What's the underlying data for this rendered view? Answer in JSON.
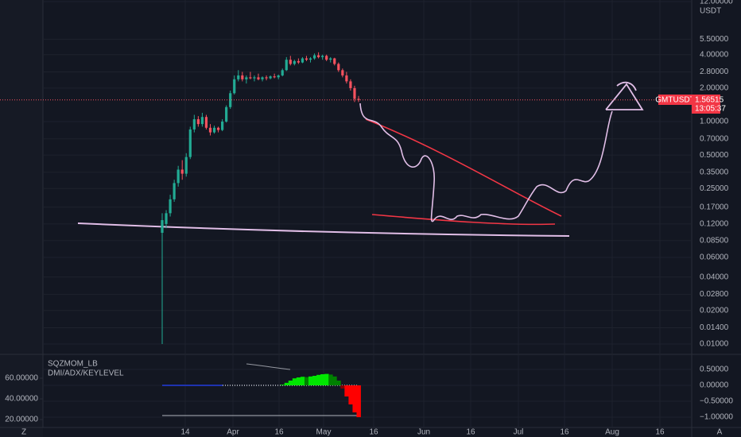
{
  "chart_data": {
    "type": "candlestick",
    "symbol": "GMTUSDT",
    "currency": "USDT",
    "last_price": 1.56515,
    "countdown": "13:05:37",
    "log_scale": true,
    "up_color": "#22ab94",
    "down_color": "#f7525f",
    "ylim": [
      0.0082,
      12.4
    ],
    "yticks": [
      {
        "value": 12,
        "label": "12.00000"
      },
      {
        "value": 5.5,
        "label": "5.50000"
      },
      {
        "value": 4,
        "label": "4.00000"
      },
      {
        "value": 2.8,
        "label": "2.80000"
      },
      {
        "value": 2,
        "label": "2.00000"
      },
      {
        "value": 1,
        "label": "1.00000"
      },
      {
        "value": 0.7,
        "label": "0.70000"
      },
      {
        "value": 0.5,
        "label": "0.50000"
      },
      {
        "value": 0.35,
        "label": "0.35000"
      },
      {
        "value": 0.25,
        "label": "0.25000"
      },
      {
        "value": 0.17,
        "label": "0.17000"
      },
      {
        "value": 0.12,
        "label": "0.12000"
      },
      {
        "value": 0.085,
        "label": "0.08500"
      },
      {
        "value": 0.06,
        "label": "0.06000"
      },
      {
        "value": 0.04,
        "label": "0.04000"
      },
      {
        "value": 0.028,
        "label": "0.02800"
      },
      {
        "value": 0.02,
        "label": "0.02000"
      },
      {
        "value": 0.014,
        "label": "0.01400"
      },
      {
        "value": 0.01,
        "label": "0.01000"
      }
    ],
    "x_labels": [
      "14",
      "Apr",
      "16",
      "May",
      "16",
      "Jun",
      "16",
      "Jul",
      "16",
      "Aug",
      "16"
    ],
    "corner_labels": [
      "Z",
      "A"
    ],
    "candles": [
      [
        0.1,
        0.15,
        0.01,
        0.13
      ],
      [
        0.12,
        0.16,
        0.11,
        0.15
      ],
      [
        0.15,
        0.22,
        0.14,
        0.2
      ],
      [
        0.2,
        0.3,
        0.19,
        0.28
      ],
      [
        0.28,
        0.4,
        0.26,
        0.37
      ],
      [
        0.37,
        0.45,
        0.3,
        0.34
      ],
      [
        0.34,
        0.52,
        0.32,
        0.48
      ],
      [
        0.48,
        0.9,
        0.46,
        0.85
      ],
      [
        0.85,
        1.15,
        0.8,
        1.05
      ],
      [
        1.05,
        1.12,
        0.9,
        0.95
      ],
      [
        0.95,
        1.2,
        0.9,
        1.1
      ],
      [
        1.1,
        1.15,
        0.85,
        0.88
      ],
      [
        0.88,
        0.95,
        0.75,
        0.8
      ],
      [
        0.8,
        0.92,
        0.78,
        0.88
      ],
      [
        0.88,
        0.9,
        0.8,
        0.84
      ],
      [
        0.84,
        1.05,
        0.82,
        1.0
      ],
      [
        1.0,
        1.4,
        0.98,
        1.35
      ],
      [
        1.35,
        1.9,
        1.3,
        1.8
      ],
      [
        1.8,
        2.6,
        1.75,
        2.4
      ],
      [
        2.4,
        2.9,
        2.3,
        2.6
      ],
      [
        2.6,
        2.8,
        2.3,
        2.4
      ],
      [
        2.4,
        2.6,
        2.2,
        2.5
      ],
      [
        2.5,
        2.8,
        2.4,
        2.45
      ],
      [
        2.45,
        2.6,
        2.3,
        2.5
      ],
      [
        2.5,
        2.7,
        2.35,
        2.4
      ],
      [
        2.4,
        2.55,
        2.3,
        2.5
      ],
      [
        2.5,
        2.6,
        2.35,
        2.45
      ],
      [
        2.45,
        2.6,
        2.4,
        2.55
      ],
      [
        2.55,
        2.7,
        2.45,
        2.5
      ],
      [
        2.5,
        2.65,
        2.4,
        2.6
      ],
      [
        2.6,
        3.0,
        2.55,
        2.9
      ],
      [
        2.9,
        3.8,
        2.85,
        3.6
      ],
      [
        3.6,
        3.9,
        3.2,
        3.3
      ],
      [
        3.3,
        3.6,
        3.2,
        3.5
      ],
      [
        3.5,
        3.7,
        3.3,
        3.4
      ],
      [
        3.4,
        3.8,
        3.35,
        3.7
      ],
      [
        3.7,
        3.9,
        3.5,
        3.6
      ],
      [
        3.6,
        3.8,
        3.4,
        3.7
      ],
      [
        3.7,
        4.1,
        3.6,
        3.95
      ],
      [
        3.95,
        4.2,
        3.7,
        3.8
      ],
      [
        3.8,
        4.0,
        3.6,
        3.9
      ],
      [
        3.9,
        4.0,
        3.5,
        3.6
      ],
      [
        3.6,
        3.8,
        3.4,
        3.7
      ],
      [
        3.7,
        3.75,
        3.2,
        3.3
      ],
      [
        3.3,
        3.4,
        2.8,
        2.9
      ],
      [
        2.9,
        3.0,
        2.5,
        2.6
      ],
      [
        2.6,
        2.8,
        2.2,
        2.3
      ],
      [
        2.3,
        2.4,
        1.9,
        2.0
      ],
      [
        2.0,
        2.1,
        1.5,
        1.6
      ],
      [
        1.6,
        1.7,
        1.5,
        1.56515
      ]
    ],
    "indicator": {
      "titles": [
        "SQZMOM_LB",
        "DMI/ADX/KEYLEVEL"
      ],
      "ylim": [
        -1.3,
        0.95
      ],
      "yticks": [
        {
          "value": 0.5,
          "label": "0.50000"
        },
        {
          "value": 0,
          "label": "0.00000"
        },
        {
          "value": -0.5,
          "label": "−0.50000"
        },
        {
          "value": -1,
          "label": "−1.00000"
        }
      ],
      "left_ylim": [
        13.1,
        82.3
      ],
      "left_yticks": [
        {
          "value": 60,
          "label": "60.00000"
        },
        {
          "value": 40,
          "label": "40.00000"
        },
        {
          "value": 20,
          "label": "20.00000"
        }
      ],
      "positive_colors": [
        "#00e600",
        "#008000"
      ],
      "negative_colors": [
        "#ff0000",
        "#800000"
      ],
      "momentum": [
        null,
        null,
        null,
        null,
        null,
        null,
        null,
        null,
        null,
        null,
        null,
        null,
        null,
        null,
        null,
        null,
        null,
        null,
        null,
        null,
        null,
        null,
        null,
        null,
        null,
        null,
        null,
        null,
        null,
        null,
        0.02,
        0.08,
        0.15,
        0.22,
        0.25,
        0.27,
        0.26,
        0.28,
        0.3,
        0.33,
        0.35,
        0.36,
        0.34,
        0.28,
        0.15,
        -0.1,
        -0.35,
        -0.6,
        -0.85,
        -1.0
      ]
    }
  }
}
